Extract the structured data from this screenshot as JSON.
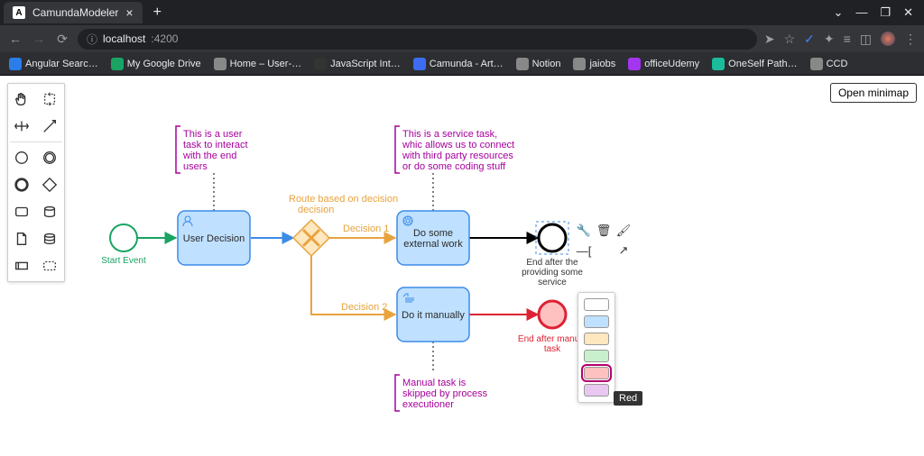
{
  "browser": {
    "tab_title": "CamundaModeler",
    "url_host": "localhost",
    "url_port": ":4200",
    "bookmarks": [
      {
        "label": "Angular Searc…",
        "color": "#2b7de9"
      },
      {
        "label": "My Google Drive",
        "color": "#19a463"
      },
      {
        "label": "Home – User-…",
        "color": "#888"
      },
      {
        "label": "JavaScript Int…",
        "color": "#333"
      },
      {
        "label": "Camunda - Art…",
        "color": "#3c6cf0"
      },
      {
        "label": "Notion",
        "color": "#888"
      },
      {
        "label": "jaiobs",
        "color": "#888"
      },
      {
        "label": "officeUdemy",
        "color": "#a435f0"
      },
      {
        "label": "OneSelf Path…",
        "color": "#1abc9c"
      },
      {
        "label": "CCD",
        "color": "#888"
      }
    ]
  },
  "minimap_label": "Open minimap",
  "diagram": {
    "task_fill": "#bfe0ff",
    "task_stroke": "#3c8ce7",
    "gateway_fill": "#ffe7bf",
    "gateway_stroke": "#e8a33d",
    "start_stroke": "#19a463",
    "end1_stroke": "#000",
    "end2_fill": "#ffc0c0",
    "end2_stroke": "#d23",
    "anno_color": "#a6009c",
    "nodes": {
      "start": {
        "label": "Start Event"
      },
      "user_task": {
        "label": "User Decision"
      },
      "gateway": {
        "top_label": "Route based on decision"
      },
      "service_task": {
        "label_line1": "Do some",
        "label_line2": "external work"
      },
      "manual_task": {
        "label": "Do it manually"
      },
      "end1": {
        "label_line1": "End after the",
        "label_line2": "providing some",
        "label_line3": "service"
      },
      "end2": {
        "label_line1": "End after manual",
        "label_line2": "task"
      }
    },
    "edges": {
      "d1": "Decision 1",
      "d2": "Decision 2"
    },
    "annotations": {
      "a1": {
        "l1": "This is a user",
        "l2": "task to interact",
        "l3": "with the end",
        "l4": "users"
      },
      "a2": {
        "l1": "This is a service task,",
        "l2": "whic allows us to connect",
        "l3": "with third party resources",
        "l4": "or do some coding stuff"
      },
      "a3": {
        "l1": "Manual task is",
        "l2": "skipped by process",
        "l3": "executioner"
      }
    }
  },
  "color_picker": {
    "swatches": [
      "#ffffff",
      "#bfe0ff",
      "#ffe7bf",
      "#c8f0cc",
      "#ffc0c0",
      "#e8c8f0"
    ],
    "selected": 4,
    "tooltip": "Red"
  }
}
